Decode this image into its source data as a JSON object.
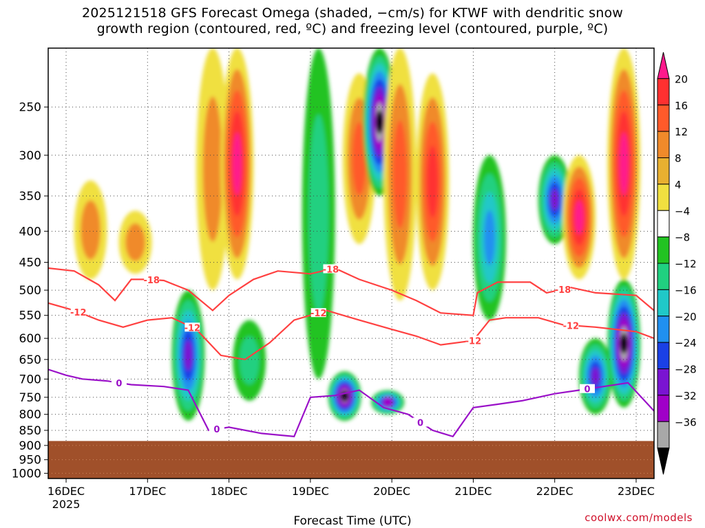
{
  "title_line1": "2025121518 GFS Forecast Omega (shaded, −cm/s) for KTWF with dendritic snow",
  "title_line2": "growth region (contoured, red, ºC) and freezing level (contoured, purple, ºC)",
  "credit": "coolwx.com/models",
  "chart_data": {
    "type": "heatmap",
    "title": "2025121518 GFS Forecast Omega (shaded, −cm/s) for KTWF with dendritic snow growth region (contoured, red, ºC) and freezing level (contoured, purple, ºC)",
    "xlabel": "Forecast Time (UTC)",
    "ylabel": "",
    "y_scale": "log-pressure (hPa), inverted",
    "grid": true,
    "x_ticks": [
      {
        "label": "16DEC",
        "sublabel": "2025",
        "day": 0
      },
      {
        "label": "17DEC",
        "sublabel": "",
        "day": 1
      },
      {
        "label": "18DEC",
        "sublabel": "",
        "day": 2
      },
      {
        "label": "19DEC",
        "sublabel": "",
        "day": 3
      },
      {
        "label": "20DEC",
        "sublabel": "",
        "day": 4
      },
      {
        "label": "21DEC",
        "sublabel": "",
        "day": 5
      },
      {
        "label": "22DEC",
        "sublabel": "",
        "day": 6
      },
      {
        "label": "23DEC",
        "sublabel": "",
        "day": 7
      }
    ],
    "xlim_days": [
      -0.22,
      7.22
    ],
    "y_ticks": [
      250,
      300,
      350,
      400,
      450,
      500,
      550,
      600,
      650,
      700,
      750,
      800,
      850,
      900,
      950,
      1000
    ],
    "ylim_hpa": [
      200,
      1020
    ],
    "surface_pressure_hpa": 885,
    "colorbar": {
      "labels": [
        "20",
        "16",
        "12",
        "8",
        "4",
        "−4",
        "−8",
        "−12",
        "−16",
        "−20",
        "−24",
        "−28",
        "−32",
        "−36"
      ],
      "colors": [
        "#ff1a8c",
        "#ff3030",
        "#ff5a2a",
        "#f08a2a",
        "#e8b030",
        "#f0e040",
        "#ffffff",
        "#22c322",
        "#20d080",
        "#20c8c8",
        "#2090f0",
        "#1a40e6",
        "#7a14d2",
        "#a000c8",
        "#a8a8a8",
        "#000000"
      ]
    },
    "omega_features": [
      {
        "day": 0.3,
        "p_top": 330,
        "p_bot": 480,
        "value": 10
      },
      {
        "day": 0.85,
        "p_top": 370,
        "p_bot": 470,
        "value": 8
      },
      {
        "day": 1.5,
        "p_top": 500,
        "p_bot": 820,
        "value": -24
      },
      {
        "day": 1.8,
        "p_top": 200,
        "p_bot": 500,
        "value": 10
      },
      {
        "day": 2.1,
        "p_top": 200,
        "p_bot": 480,
        "value": 20
      },
      {
        "day": 2.25,
        "p_top": 560,
        "p_bot": 760,
        "value": -8
      },
      {
        "day": 3.1,
        "p_top": 200,
        "p_bot": 700,
        "value": -10
      },
      {
        "day": 3.42,
        "p_top": 680,
        "p_bot": 820,
        "value": -36
      },
      {
        "day": 3.6,
        "p_top": 220,
        "p_bot": 420,
        "value": 14
      },
      {
        "day": 3.85,
        "p_top": 200,
        "p_bot": 350,
        "value": -36
      },
      {
        "day": 3.95,
        "p_top": 730,
        "p_bot": 800,
        "value": -28
      },
      {
        "day": 4.1,
        "p_top": 200,
        "p_bot": 520,
        "value": 12
      },
      {
        "day": 4.5,
        "p_top": 220,
        "p_bot": 500,
        "value": 16
      },
      {
        "day": 5.2,
        "p_top": 300,
        "p_bot": 560,
        "value": -18
      },
      {
        "day": 6.0,
        "p_top": 300,
        "p_bot": 420,
        "value": -24
      },
      {
        "day": 6.3,
        "p_top": 300,
        "p_bot": 480,
        "value": 20
      },
      {
        "day": 6.5,
        "p_top": 600,
        "p_bot": 800,
        "value": -24
      },
      {
        "day": 6.85,
        "p_top": 200,
        "p_bot": 480,
        "value": 20
      },
      {
        "day": 6.85,
        "p_top": 480,
        "p_bot": 780,
        "value": -36
      }
    ],
    "contours": [
      {
        "name": "-18",
        "color": "#ff4040",
        "labels_at_days": [
          1.05,
          3.25,
          6.1
        ],
        "points": [
          [
            -0.22,
            460
          ],
          [
            0.1,
            465
          ],
          [
            0.4,
            490
          ],
          [
            0.6,
            520
          ],
          [
            0.8,
            480
          ],
          [
            1.0,
            480
          ],
          [
            1.2,
            482
          ],
          [
            1.5,
            500
          ],
          [
            1.8,
            540
          ],
          [
            2.0,
            510
          ],
          [
            2.3,
            480
          ],
          [
            2.6,
            465
          ],
          [
            3.0,
            470
          ],
          [
            3.3,
            460
          ],
          [
            3.6,
            480
          ],
          [
            4.0,
            500
          ],
          [
            4.3,
            520
          ],
          [
            4.6,
            545
          ],
          [
            5.0,
            550
          ],
          [
            5.05,
            505
          ],
          [
            5.3,
            485
          ],
          [
            5.7,
            485
          ],
          [
            5.9,
            505
          ],
          [
            6.2,
            495
          ],
          [
            6.5,
            505
          ],
          [
            7.0,
            510
          ],
          [
            7.22,
            540
          ]
        ]
      },
      {
        "name": "-12",
        "color": "#ff4040",
        "labels_at_days": [
          0.15,
          1.55,
          3.1,
          5.0,
          6.2
        ],
        "points": [
          [
            -0.22,
            525
          ],
          [
            0.1,
            540
          ],
          [
            0.4,
            560
          ],
          [
            0.7,
            575
          ],
          [
            1.0,
            560
          ],
          [
            1.3,
            555
          ],
          [
            1.6,
            580
          ],
          [
            1.9,
            640
          ],
          [
            2.2,
            650
          ],
          [
            2.5,
            610
          ],
          [
            2.8,
            560
          ],
          [
            3.2,
            540
          ],
          [
            3.6,
            560
          ],
          [
            4.0,
            580
          ],
          [
            4.3,
            595
          ],
          [
            4.6,
            615
          ],
          [
            5.0,
            605
          ],
          [
            5.2,
            560
          ],
          [
            5.4,
            555
          ],
          [
            5.8,
            555
          ],
          [
            6.1,
            570
          ],
          [
            6.5,
            575
          ],
          [
            7.0,
            585
          ],
          [
            7.22,
            600
          ]
        ]
      },
      {
        "name": "0",
        "color": "#9a10c8",
        "labels_at_days": [
          0.65,
          1.85,
          4.35,
          6.4
        ],
        "points": [
          [
            -0.22,
            675
          ],
          [
            0.0,
            690
          ],
          [
            0.2,
            700
          ],
          [
            0.5,
            705
          ],
          [
            0.8,
            715
          ],
          [
            1.2,
            720
          ],
          [
            1.5,
            730
          ],
          [
            1.75,
            850
          ],
          [
            2.0,
            840
          ],
          [
            2.4,
            860
          ],
          [
            2.8,
            870
          ],
          [
            3.0,
            750
          ],
          [
            3.3,
            745
          ],
          [
            3.6,
            730
          ],
          [
            3.9,
            780
          ],
          [
            4.2,
            800
          ],
          [
            4.5,
            850
          ],
          [
            4.75,
            870
          ],
          [
            5.0,
            780
          ],
          [
            5.3,
            770
          ],
          [
            5.6,
            760
          ],
          [
            6.0,
            740
          ],
          [
            6.3,
            730
          ],
          [
            6.6,
            720
          ],
          [
            6.9,
            710
          ],
          [
            7.22,
            790
          ]
        ]
      }
    ]
  }
}
